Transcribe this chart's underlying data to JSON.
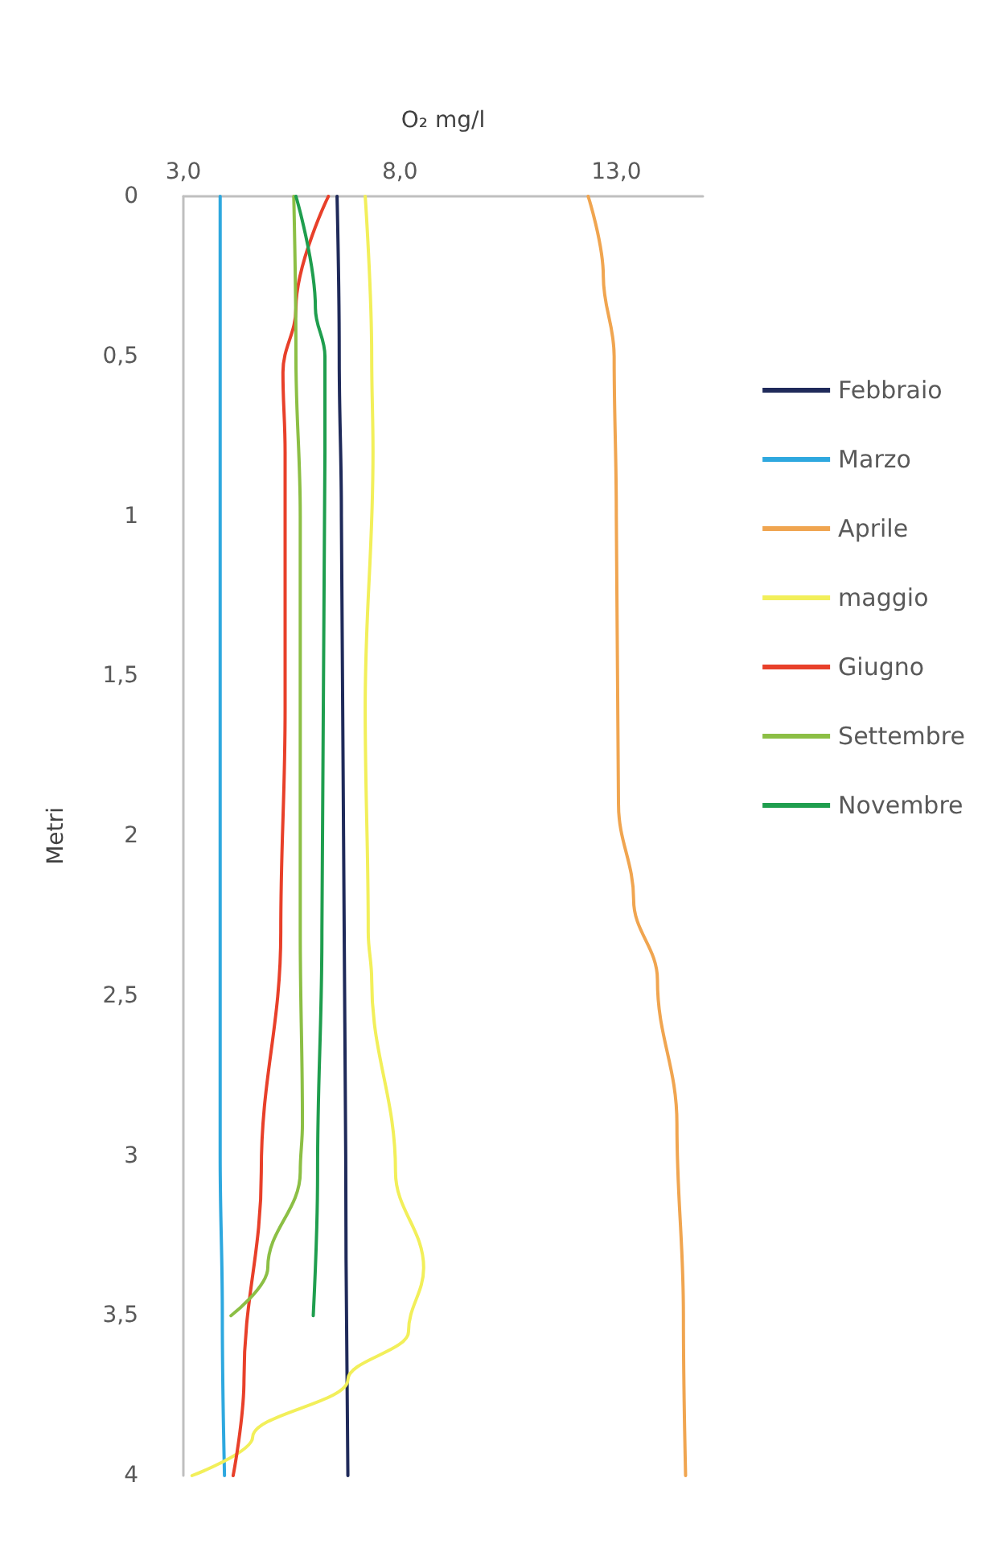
{
  "chart_data": {
    "type": "line",
    "xlabel": "O₂ mg/l",
    "ylabel": "Metri",
    "xlim": [
      3,
      15
    ],
    "xticks": [
      {
        "value": 3,
        "label": "3,0"
      },
      {
        "value": 8,
        "label": "8,0"
      },
      {
        "value": 13,
        "label": "13,0"
      }
    ],
    "ylim": [
      4,
      0
    ],
    "yticks": [
      0,
      {
        "value": 0.5,
        "label": "0,5"
      },
      1,
      {
        "value": 1.5,
        "label": "1,5"
      },
      2,
      {
        "value": 2.5,
        "label": "2,5"
      },
      3,
      {
        "value": 3.5,
        "label": "3,5"
      },
      4
    ],
    "grid": false,
    "legend": "right",
    "marker": "none",
    "series": [
      {
        "name": "Febbraio",
        "color": "#1f2a5a",
        "x": [
          6.55,
          6.6,
          6.65,
          6.7,
          6.75,
          6.8
        ],
        "values": [
          0,
          0.5,
          1,
          2,
          3,
          4
        ]
      },
      {
        "name": "Marzo",
        "color": "#2ea8df",
        "x": [
          3.85,
          3.85,
          3.85,
          3.85,
          3.9,
          3.95
        ],
        "values": [
          0,
          1,
          2,
          3,
          3.5,
          4
        ]
      },
      {
        "name": "Aprile",
        "color": "#f0a550",
        "x": [
          12.35,
          12.7,
          12.95,
          13.0,
          13.05,
          13.4,
          13.95,
          14.4,
          14.55,
          14.6
        ],
        "values": [
          0,
          0.25,
          0.5,
          1,
          1.9,
          2.2,
          2.45,
          2.9,
          3.5,
          4
        ]
      },
      {
        "name": "maggio",
        "color": "#f2ef5a",
        "x": [
          7.2,
          7.35,
          7.38,
          7.2,
          7.27,
          7.35,
          7.9,
          8.55,
          8.2,
          6.8,
          4.6,
          3.2
        ],
        "values": [
          0,
          0.5,
          0.8,
          1.6,
          2.3,
          2.45,
          3.05,
          3.35,
          3.55,
          3.7,
          3.88,
          4
        ]
      },
      {
        "name": "Giugno",
        "color": "#e8402a",
        "x": [
          6.35,
          5.6,
          5.3,
          5.35,
          5.35,
          5.25,
          4.8,
          4.4,
          4.15
        ],
        "values": [
          0,
          0.35,
          0.55,
          0.8,
          1.6,
          2.3,
          3.05,
          3.7,
          4
        ]
      },
      {
        "name": "Settembre",
        "color": "#8cbf45",
        "x": [
          5.55,
          5.6,
          5.7,
          5.7,
          5.75,
          5.7,
          4.95,
          4.1
        ],
        "values": [
          0,
          0.5,
          1,
          2.3,
          2.9,
          3.05,
          3.35,
          3.5
        ]
      },
      {
        "name": "Novembre",
        "color": "#1f9e4e",
        "x": [
          5.6,
          6.05,
          6.27,
          6.27,
          6.2,
          6.1,
          6.0
        ],
        "values": [
          0,
          0.35,
          0.5,
          0.8,
          2.3,
          3.05,
          3.5
        ]
      }
    ]
  }
}
